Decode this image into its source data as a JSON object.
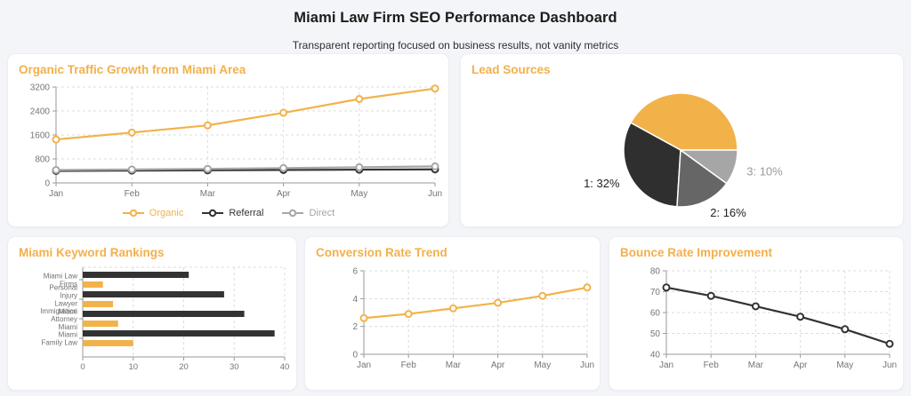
{
  "header": {
    "title": "Miami Law Firm SEO Performance Dashboard",
    "subtitle": "Transparent reporting focused on business results, not vanity metrics"
  },
  "colors": {
    "accent_orange": "#f2b04b",
    "series_orange": "#f2b24a",
    "series_dark": "#333333",
    "series_mid_gray": "#666666",
    "series_light_gray": "#a6a6a6",
    "grid": "#dcdcdc",
    "axis": "#9a9a9a",
    "tick_text": "#757575",
    "panel_bg": "#ffffff",
    "page_bg": "#f4f5f8"
  },
  "panels": {
    "traffic": {
      "title": "Organic Traffic Growth from Miami Area"
    },
    "leads": {
      "title": "Lead Sources"
    },
    "keywords": {
      "title": "Miami Keyword Rankings"
    },
    "conversion": {
      "title": "Conversion Rate Trend"
    },
    "bounce": {
      "title": "Bounce Rate Improvement"
    }
  },
  "chart_data": [
    {
      "id": "traffic",
      "type": "line",
      "title": "Organic Traffic Growth from Miami Area",
      "x": [
        "Jan",
        "Feb",
        "Mar",
        "Apr",
        "May",
        "Jun"
      ],
      "series": [
        {
          "name": "Organic",
          "color": "#f2b24a",
          "values": [
            1450,
            1680,
            1920,
            2340,
            2800,
            3150
          ]
        },
        {
          "name": "Referral",
          "color": "#333333",
          "values": [
            400,
            412,
            422,
            432,
            442,
            452
          ]
        },
        {
          "name": "Direct",
          "color": "#a6a6a6",
          "values": [
            430,
            448,
            468,
            495,
            522,
            552
          ]
        }
      ],
      "ylim": [
        0,
        3200
      ],
      "yticks": [
        0,
        800,
        1600,
        2400,
        3200
      ],
      "grid": true,
      "legend_position": "bottom"
    },
    {
      "id": "leads",
      "type": "pie",
      "title": "Lead Sources",
      "slices": [
        {
          "label": "",
          "value": 42,
          "color": "#f2b24a",
          "label_color": ""
        },
        {
          "label": "1: 32%",
          "value": 32,
          "color": "#2f2f2f",
          "label_color": "#222222"
        },
        {
          "label": "2: 16%",
          "value": 16,
          "color": "#666666",
          "label_color": "#222222"
        },
        {
          "label": "3: 10%",
          "value": 10,
          "color": "#a6a6a6",
          "label_color": "#9a9a9a"
        }
      ],
      "start_angle_deg": 0,
      "direction": "counterclockwise",
      "slice_border_color": "#ffffff"
    },
    {
      "id": "keywords",
      "type": "bar",
      "orientation": "horizontal",
      "title": "Miami Keyword Rankings",
      "categories": [
        [
          "Miami Law",
          "Firms"
        ],
        [
          "Personal",
          "Injury",
          "Lawyer",
          "Miami"
        ],
        [
          "Immigration",
          "Attorney",
          "Miami"
        ],
        [
          "Miami",
          "Family Law"
        ]
      ],
      "series": [
        {
          "name": "dark-bar",
          "color": "#333333",
          "values": [
            21,
            28,
            32,
            38
          ]
        },
        {
          "name": "orange-bar",
          "color": "#f2b24a",
          "values": [
            4,
            6,
            7,
            10
          ]
        }
      ],
      "xlim": [
        0,
        40
      ],
      "xticks": [
        0,
        10,
        20,
        30,
        40
      ],
      "grid": true
    },
    {
      "id": "conversion",
      "type": "line",
      "title": "Conversion Rate Trend",
      "x": [
        "Jan",
        "Feb",
        "Mar",
        "Apr",
        "May",
        "Jun"
      ],
      "series": [
        {
          "name": "conversion-rate",
          "color": "#f2b24a",
          "values": [
            2.6,
            2.9,
            3.3,
            3.7,
            4.2,
            4.8
          ]
        }
      ],
      "ylim": [
        0,
        6
      ],
      "yticks": [
        0,
        2,
        4,
        6
      ],
      "grid": true,
      "legend_position": "none"
    },
    {
      "id": "bounce",
      "type": "line",
      "title": "Bounce Rate Improvement",
      "x": [
        "Jan",
        "Feb",
        "Mar",
        "Apr",
        "May",
        "Jun"
      ],
      "series": [
        {
          "name": "bounce-rate",
          "color": "#333333",
          "values": [
            72,
            68,
            63,
            58,
            52,
            45
          ]
        }
      ],
      "ylim": [
        40,
        80
      ],
      "yticks": [
        40,
        50,
        60,
        70,
        80
      ],
      "grid": true,
      "legend_position": "none"
    }
  ]
}
